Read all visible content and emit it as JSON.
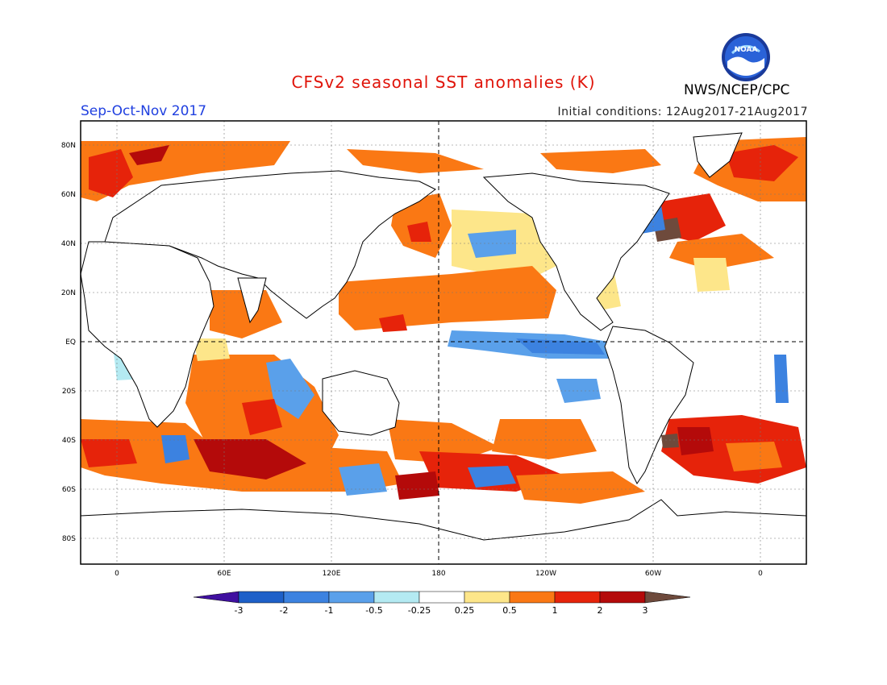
{
  "header": {
    "title": "CFSv2 seasonal SST anomalies (K)",
    "season": "Sep-Oct-Nov 2017",
    "initial_conditions": "Initial conditions: 12Aug2017-21Aug2017",
    "agency": "NWS/NCEP/CPC",
    "logo_text": "NOAA"
  },
  "colors": {
    "title": "#e0140a",
    "season": "#2040e0",
    "frame": "#000000"
  },
  "map": {
    "lat_ticks": [
      "80N",
      "60N",
      "40N",
      "20N",
      "EQ",
      "20S",
      "40S",
      "60S",
      "80S"
    ],
    "lon_ticks": [
      "0",
      "60E",
      "120E",
      "180",
      "120W",
      "60W",
      "0"
    ]
  },
  "colorbar": {
    "labels": [
      "-3",
      "-2",
      "-1",
      "-0.5",
      "-0.25",
      "0.25",
      "0.5",
      "1",
      "2",
      "3"
    ],
    "colors": [
      "#4010a0",
      "#1e60c8",
      "#3c82e0",
      "#5aa0ea",
      "#b4eaf2",
      "#ffffff",
      "#fde68a",
      "#fa7814",
      "#e6230a",
      "#b40a0a",
      "#6e4a3c"
    ]
  }
}
